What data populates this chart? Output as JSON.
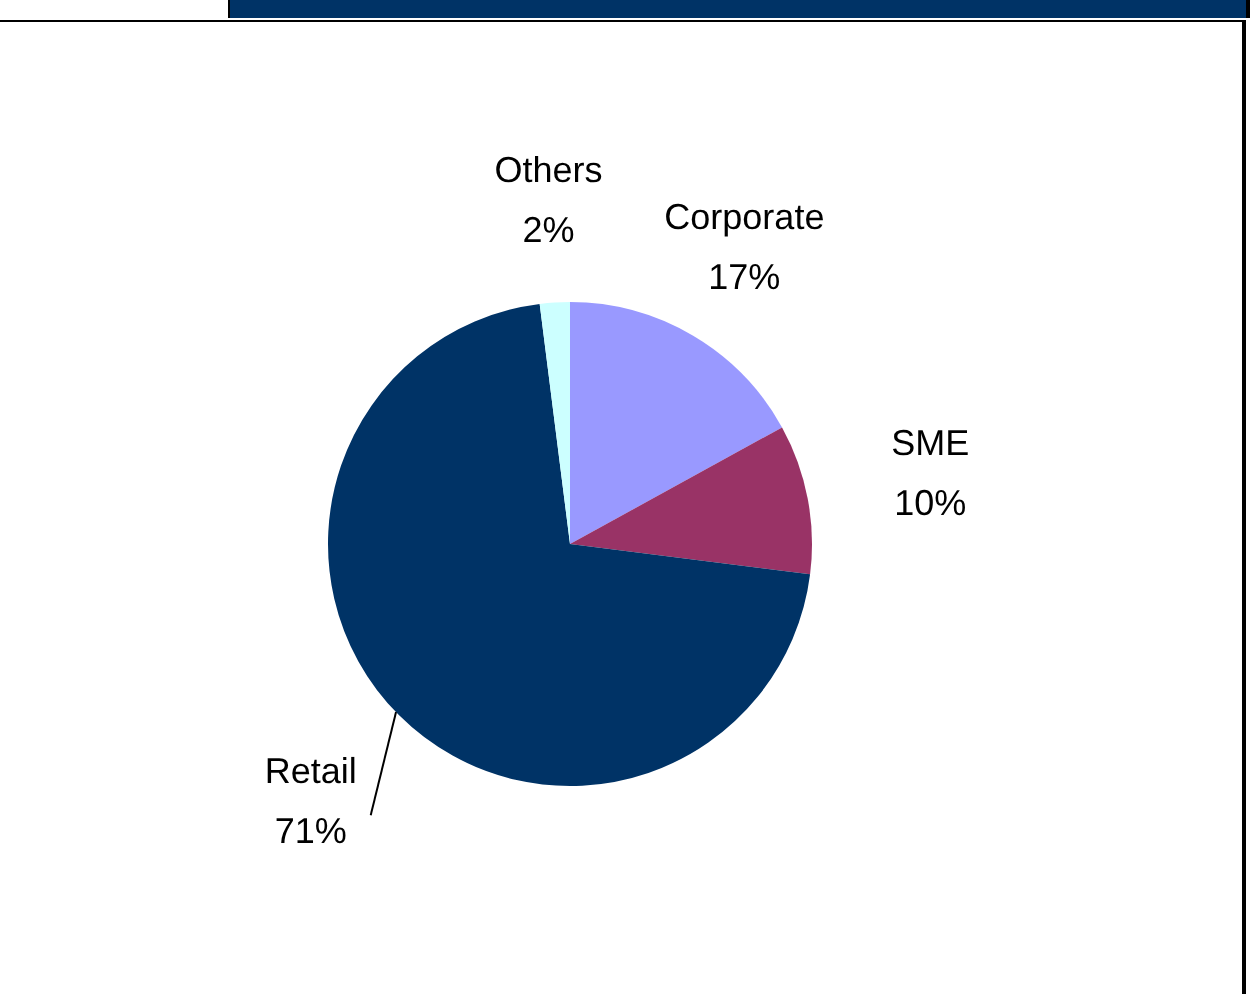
{
  "chart_data": {
    "type": "pie",
    "categories": [
      "Corporate",
      "SME",
      "Retail",
      "Others"
    ],
    "values": [
      17,
      10,
      71,
      2
    ],
    "colors": [
      "#9999ff",
      "#993366",
      "#003366",
      "#ccffff"
    ],
    "value_labels": [
      "17%",
      "10%",
      "71%",
      "2%"
    ],
    "legend": false
  }
}
